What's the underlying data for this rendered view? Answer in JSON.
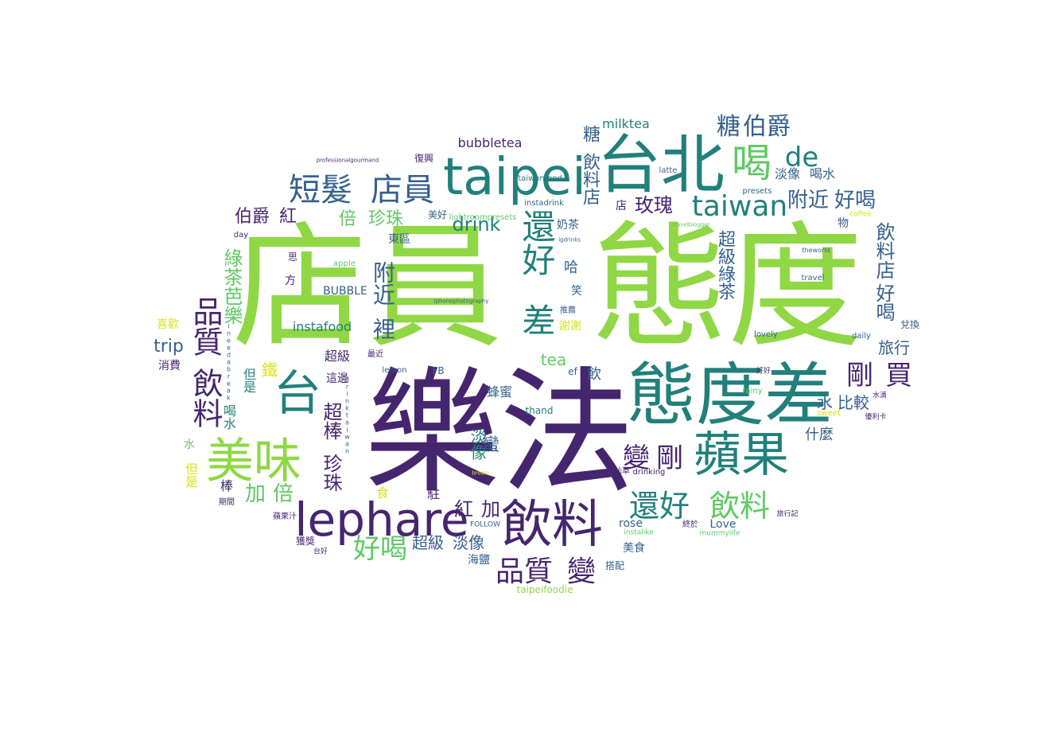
{
  "palette": {
    "dark_purple": "#46256f",
    "teal": "#21807b",
    "blue": "#35608d",
    "green": "#5ec962",
    "lime": "#a8d93a",
    "yellow": "#d8e219"
  },
  "words": [
    {
      "text": "店員",
      "color": "#8fd744"
    },
    {
      "text": "態度",
      "color": "#8fd744"
    },
    {
      "text": "樂法",
      "color": "#46256f"
    },
    {
      "text": "態度差",
      "color": "#21807b"
    },
    {
      "text": "台北",
      "color": "#21807b"
    },
    {
      "text": "taipei",
      "color": "#21807b"
    },
    {
      "text": "lephare",
      "color": "#46256f"
    },
    {
      "text": "飲料",
      "color": "#46256f"
    },
    {
      "text": "蘋果",
      "color": "#21807b"
    },
    {
      "text": "美味",
      "color": "#8fd744"
    },
    {
      "text": "短髮",
      "color": "#35608d"
    },
    {
      "text": "店員",
      "color": "#35608d"
    },
    {
      "text": "喝",
      "color": "#5ec962"
    },
    {
      "text": "台",
      "color": "#21807b"
    },
    {
      "text": "差",
      "color": "#21807b"
    },
    {
      "text": "還好",
      "color": "#21807b"
    },
    {
      "text": "taiwan",
      "color": "#21807b"
    },
    {
      "text": "還好",
      "color": "#21807b"
    },
    {
      "text": "飲料",
      "color": "#5ec962"
    },
    {
      "text": "品質",
      "color": "#46256f"
    },
    {
      "text": "變",
      "color": "#46256f"
    },
    {
      "text": "飲料",
      "color": "#46256f"
    },
    {
      "text": "品質",
      "color": "#46256f"
    },
    {
      "text": "好喝",
      "color": "#5ec962"
    },
    {
      "text": "剛",
      "color": "#46256f"
    },
    {
      "text": "買",
      "color": "#46256f"
    },
    {
      "text": "變",
      "color": "#46256f"
    },
    {
      "text": "剛",
      "color": "#46256f"
    },
    {
      "text": "de",
      "color": "#21807b"
    },
    {
      "text": "糖",
      "color": "#35608d"
    },
    {
      "text": "伯爵",
      "color": "#35608d"
    },
    {
      "text": "附近",
      "color": "#35608d"
    },
    {
      "text": "好喝",
      "color": "#35608d"
    },
    {
      "text": "玫瑰",
      "color": "#46256f"
    },
    {
      "text": "倍",
      "color": "#5ec962"
    },
    {
      "text": "珍珠",
      "color": "#5ec962"
    },
    {
      "text": "drink",
      "color": "#21807b"
    },
    {
      "text": "伯爵",
      "color": "#46256f"
    },
    {
      "text": "紅",
      "color": "#46256f"
    },
    {
      "text": "加",
      "color": "#5ec962"
    },
    {
      "text": "倍",
      "color": "#5ec962"
    },
    {
      "text": "紅",
      "color": "#46256f"
    },
    {
      "text": "加",
      "color": "#46256f"
    },
    {
      "text": "超級",
      "color": "#35608d"
    },
    {
      "text": "淡像",
      "color": "#35608d"
    },
    {
      "text": "tea",
      "color": "#5ec962"
    },
    {
      "text": "trip",
      "color": "#35608d"
    },
    {
      "text": "旅行",
      "color": "#35608d"
    },
    {
      "text": "水",
      "color": "#35608d"
    },
    {
      "text": "比較",
      "color": "#35608d"
    },
    {
      "text": "milktea",
      "color": "#21807b"
    },
    {
      "text": "bubbletea",
      "color": "#46256f"
    },
    {
      "text": "instafood",
      "color": "#21807b"
    },
    {
      "text": "淡像",
      "color": "#35608d"
    },
    {
      "text": "喝水",
      "color": "#35608d"
    },
    {
      "text": "東區",
      "color": "#35608d"
    },
    {
      "text": "BUBBLE",
      "color": "#35608d"
    },
    {
      "text": "蜂蜜",
      "color": "#35608d"
    },
    {
      "text": "rose",
      "color": "#35608d"
    },
    {
      "text": "Love",
      "color": "#35608d"
    },
    {
      "text": "美食",
      "color": "#35608d"
    },
    {
      "text": "搭配",
      "color": "#35608d"
    },
    {
      "text": "海鹽",
      "color": "#35608d"
    },
    {
      "text": "taipeifoodie",
      "color": "#8fd744"
    },
    {
      "text": "超級",
      "color": "#46256f"
    },
    {
      "text": "淡像",
      "color": "#21807b"
    },
    {
      "text": "FB",
      "color": "#35608d"
    },
    {
      "text": "lemon",
      "color": "#35608d"
    },
    {
      "text": "thand",
      "color": "#21807b"
    },
    {
      "text": "ef",
      "color": "#35608d"
    },
    {
      "text": "instadrink",
      "color": "#35608d"
    },
    {
      "text": "taiwanfood",
      "color": "#21807b"
    },
    {
      "text": "latte",
      "color": "#35608d"
    },
    {
      "text": "presets",
      "color": "#35608d"
    },
    {
      "text": "lightroompresets",
      "color": "#5ec962"
    },
    {
      "text": "美好",
      "color": "#35608d"
    },
    {
      "text": "復興",
      "color": "#46256f"
    },
    {
      "text": "day",
      "color": "#46256f"
    },
    {
      "text": "apple",
      "color": "#5ec962"
    },
    {
      "text": "喜歡",
      "color": "#d8e219"
    },
    {
      "text": "消費",
      "color": "#46256f"
    },
    {
      "text": "這邊",
      "color": "#46256f"
    },
    {
      "text": "最近",
      "color": "#46256f"
    },
    {
      "text": "獲獎",
      "color": "#46256f"
    },
    {
      "text": "蘋果汁",
      "color": "#46256f"
    },
    {
      "text": "期間",
      "color": "#46256f"
    },
    {
      "text": "台好",
      "color": "#46256f"
    },
    {
      "text": "FOLLOW",
      "color": "#35608d"
    },
    {
      "text": "兌換",
      "color": "#35608d"
    },
    {
      "text": "daily",
      "color": "#35608d"
    },
    {
      "text": "lovely",
      "color": "#35608d"
    },
    {
      "text": "travel",
      "color": "#35608d"
    },
    {
      "text": "theworld",
      "color": "#35608d"
    },
    {
      "text": "coffee",
      "color": "#d8e219"
    },
    {
      "text": "rainy",
      "color": "#5ec962"
    },
    {
      "text": "sweet",
      "color": "#d8e219"
    },
    {
      "text": "旅行記",
      "color": "#46256f"
    },
    {
      "text": "終於",
      "color": "#46256f"
    },
    {
      "text": "mummylife",
      "color": "#5ec962"
    },
    {
      "text": "instalike",
      "color": "#5ec962"
    },
    {
      "text": "drinking",
      "color": "#46256f"
    },
    {
      "text": "仙草",
      "color": "#46256f"
    },
    {
      "text": "優利卡",
      "color": "#46256f"
    },
    {
      "text": "水滴",
      "color": "#46256f"
    },
    {
      "text": "好好",
      "color": "#46256f"
    },
    {
      "text": "brown",
      "color": "#d8e219"
    },
    {
      "text": "iphonephotography",
      "color": "#35608d"
    },
    {
      "text": "ineedabreak",
      "color": "#35608d"
    },
    {
      "text": "drinktaiwan",
      "color": "#35608d"
    },
    {
      "text": "professionalgourmand",
      "color": "#46256f"
    },
    {
      "text": "igdrinks",
      "color": "#35608d"
    },
    {
      "text": "travelblogger",
      "color": "#5ec962"
    },
    {
      "text": "奶茶",
      "color": "#35608d"
    },
    {
      "text": "謝謝",
      "color": "#d8e219"
    },
    {
      "text": "推薦",
      "color": "#35608d"
    },
    {
      "text": "綠茶",
      "color": "#5ec962"
    },
    {
      "text": "芭樂",
      "color": "#5ec962"
    },
    {
      "text": "超級",
      "color": "#35608d"
    },
    {
      "text": "綠茶",
      "color": "#35608d"
    },
    {
      "text": "飲料店",
      "color": "#35608d"
    },
    {
      "text": "好喝",
      "color": "#35608d"
    },
    {
      "text": "飲料店",
      "color": "#35608d"
    },
    {
      "text": "糖",
      "color": "#35608d"
    },
    {
      "text": "裡",
      "color": "#35608d"
    },
    {
      "text": "附近",
      "color": "#35608d"
    },
    {
      "text": "超棒",
      "color": "#46256f"
    },
    {
      "text": "珍珠",
      "color": "#46256f"
    },
    {
      "text": "鐵",
      "color": "#d8e219"
    },
    {
      "text": "蠻",
      "color": "#35608d"
    },
    {
      "text": "哈",
      "color": "#35608d"
    },
    {
      "text": "笑",
      "color": "#35608d"
    },
    {
      "text": "飲",
      "color": "#35608d"
    },
    {
      "text": "什麼",
      "color": "#35608d"
    },
    {
      "text": "喝水",
      "color": "#21807b"
    },
    {
      "text": "但是",
      "color": "#21807b"
    },
    {
      "text": "水",
      "color": "#5ec962"
    },
    {
      "text": "但是",
      "color": "#d8e219"
    },
    {
      "text": "棒",
      "color": "#46256f"
    },
    {
      "text": "食",
      "color": "#d8e219"
    },
    {
      "text": "駐",
      "color": "#46256f"
    },
    {
      "text": "物",
      "color": "#35608d"
    },
    {
      "text": "店",
      "color": "#46256f"
    },
    {
      "text": "方",
      "color": "#46256f"
    },
    {
      "text": "思",
      "color": "#46256f"
    }
  ]
}
